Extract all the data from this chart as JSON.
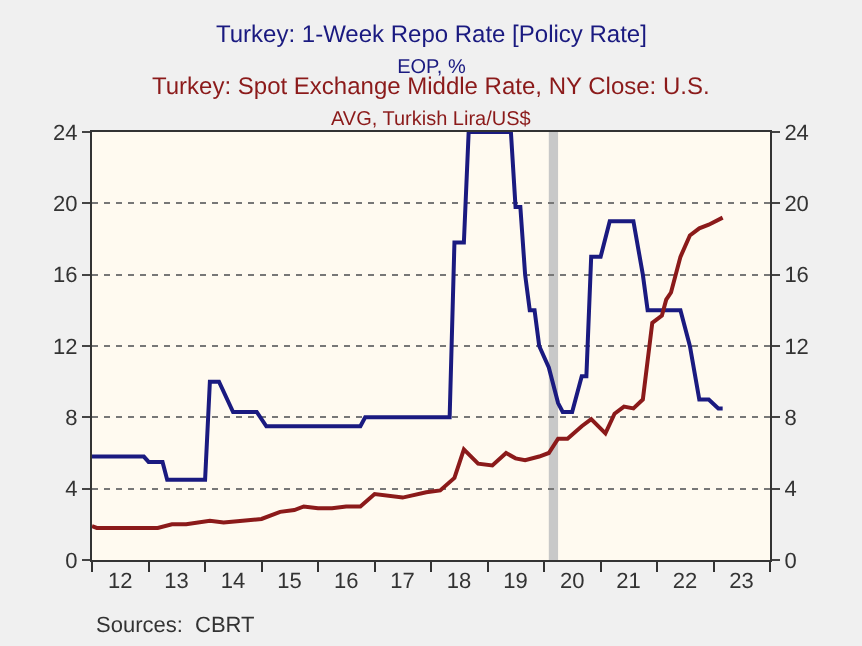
{
  "chart_data": {
    "type": "line",
    "x": [
      "2012-01",
      "2012-12",
      "2013-01",
      "2013-04",
      "2013-05",
      "2014-01",
      "2014-02",
      "2014-04",
      "2014-07",
      "2014-12",
      "2015-02",
      "2016-10",
      "2016-11",
      "2018-05",
      "2018-06",
      "2018-08",
      "2018-09",
      "2019-06",
      "2019-07",
      "2019-08",
      "2019-09",
      "2019-10",
      "2019-11",
      "2019-12",
      "2020-02",
      "2020-04",
      "2020-05",
      "2020-07",
      "2020-09",
      "2020-10",
      "2020-11",
      "2021-01",
      "2021-03",
      "2021-08",
      "2021-10",
      "2021-11",
      "2022-06",
      "2022-08",
      "2022-10",
      "2022-12",
      "2023-02",
      "2023-03"
    ],
    "series": [
      {
        "name": "Turkey: 1-Week Repo Rate [Policy Rate]\nEOP, %",
        "color": "#1a1a80",
        "values": [
          5.8,
          5.8,
          5.5,
          5.5,
          4.5,
          4.5,
          10,
          10,
          8.3,
          8.3,
          7.5,
          7.5,
          8,
          8,
          17.8,
          17.8,
          24,
          24,
          19.8,
          19.8,
          16,
          14,
          14,
          12,
          10.8,
          8.8,
          8.3,
          8.3,
          10.3,
          10.3,
          17,
          17,
          19,
          19,
          16,
          14,
          14,
          12,
          9,
          9,
          8.5,
          8.5
        ]
      },
      {
        "name": "Turkey: Spot Exchange Middle Rate, NY Close: U.S.\nAVG, Turkish Lira/US$",
        "color": "#8b1a1a",
        "x": [
          "2012-01",
          "2012-02",
          "2013-03",
          "2013-06",
          "2013-09",
          "2014-02",
          "2014-05",
          "2014-09",
          "2015-01",
          "2015-05",
          "2015-08",
          "2015-10",
          "2016-01",
          "2016-04",
          "2016-07",
          "2016-10",
          "2017-01",
          "2017-07",
          "2017-12",
          "2018-03",
          "2018-06",
          "2018-08",
          "2018-11",
          "2019-02",
          "2019-05",
          "2019-07",
          "2019-09",
          "2019-12",
          "2020-02",
          "2020-04",
          "2020-06",
          "2020-09",
          "2020-11",
          "2021-02",
          "2021-04",
          "2021-06",
          "2021-08",
          "2021-10",
          "2021-12",
          "2022-02",
          "2022-03",
          "2022-04",
          "2022-06",
          "2022-08",
          "2022-10",
          "2022-12",
          "2023-03"
        ],
        "values": [
          1.9,
          1.8,
          1.8,
          2.0,
          2.0,
          2.2,
          2.1,
          2.2,
          2.3,
          2.7,
          2.8,
          3.0,
          2.9,
          2.9,
          3.0,
          3.0,
          3.7,
          3.5,
          3.8,
          3.9,
          4.6,
          6.2,
          5.4,
          5.3,
          6.0,
          5.7,
          5.6,
          5.8,
          6.0,
          6.8,
          6.8,
          7.5,
          7.9,
          7.1,
          8.2,
          8.6,
          8.5,
          9.0,
          13.3,
          13.7,
          14.6,
          15.0,
          17.0,
          18.2,
          18.6,
          18.8,
          19.2
        ]
      }
    ],
    "xlim": [
      "2012-01",
      "2024-01"
    ],
    "xticks": [
      {
        "value": "2012-07",
        "label": "12"
      },
      {
        "value": "2013-07",
        "label": "13"
      },
      {
        "value": "2014-07",
        "label": "14"
      },
      {
        "value": "2015-07",
        "label": "15"
      },
      {
        "value": "2016-07",
        "label": "16"
      },
      {
        "value": "2017-07",
        "label": "17"
      },
      {
        "value": "2018-07",
        "label": "18"
      },
      {
        "value": "2019-07",
        "label": "19"
      },
      {
        "value": "2020-07",
        "label": "20"
      },
      {
        "value": "2021-07",
        "label": "21"
      },
      {
        "value": "2022-07",
        "label": "22"
      },
      {
        "value": "2023-07",
        "label": "23"
      }
    ],
    "ylim": [
      0,
      24
    ],
    "yticks": [
      0,
      4,
      8,
      12,
      16,
      20,
      24
    ],
    "y2lim": [
      0,
      24
    ],
    "y2ticks": [
      0,
      4,
      8,
      12,
      16,
      20,
      24
    ],
    "bands": [
      {
        "axis": "x",
        "from": "2020-02",
        "to": "2020-04",
        "color": "#c8c8c8"
      }
    ],
    "grid": "y",
    "legend": false,
    "marker": "none",
    "line_style": "solid",
    "annotations": [
      "Sources:  CBRT"
    ]
  }
}
